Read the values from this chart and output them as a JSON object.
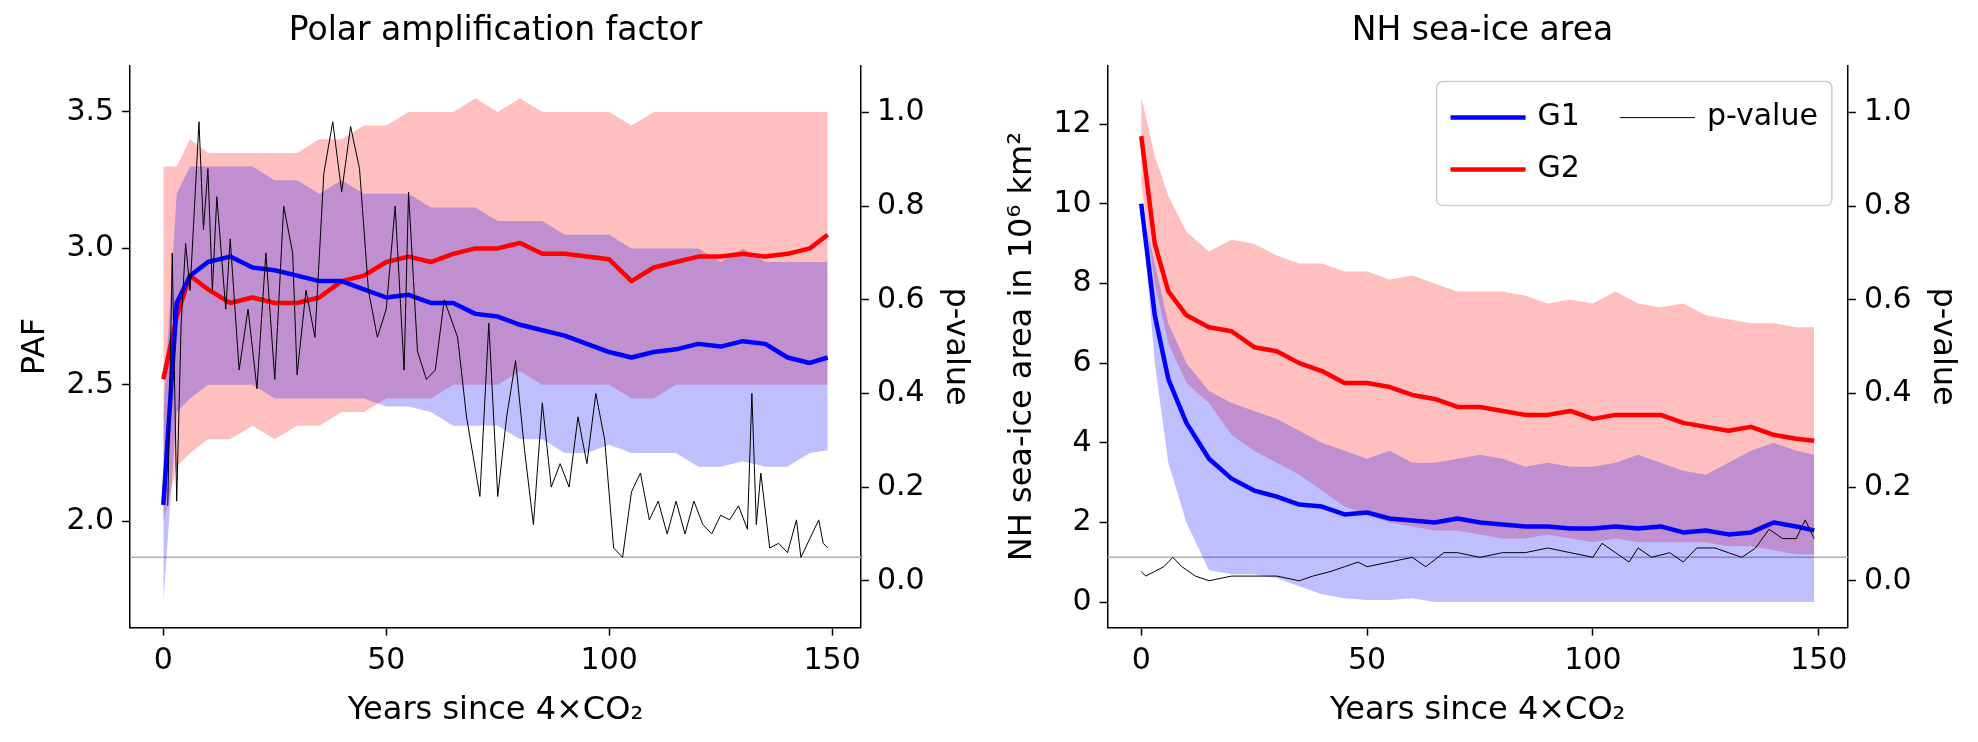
{
  "chart_data": [
    {
      "type": "line",
      "title": "Polar amplification factor",
      "xlabel": "Years since 4×CO₂",
      "ylabel": "PAF",
      "y2label": "p-value",
      "legend": false,
      "grid": false,
      "x": [
        0,
        3,
        6,
        10,
        15,
        20,
        25,
        30,
        35,
        40,
        45,
        50,
        55,
        60,
        65,
        70,
        75,
        80,
        85,
        90,
        95,
        100,
        105,
        110,
        115,
        120,
        125,
        130,
        135,
        140,
        145,
        149
      ],
      "xlim": [
        -7.45,
        156.45
      ],
      "xticks": [
        0,
        50,
        100,
        150
      ],
      "ylim": [
        1.61,
        3.67
      ],
      "yticks": [
        {
          "value": 2,
          "label": "2.0"
        },
        {
          "value": 2.5,
          "label": "2.5"
        },
        {
          "value": 3,
          "label": "3.0"
        },
        {
          "value": 3.5,
          "label": "3.5"
        }
      ],
      "y2lim": [
        -0.1,
        1.1
      ],
      "y2ticks": [
        {
          "value": 0,
          "label": "0.0"
        },
        {
          "value": 0.2,
          "label": "0.2"
        },
        {
          "value": 0.4,
          "label": "0.4"
        },
        {
          "value": 0.6,
          "label": "0.6"
        },
        {
          "value": 0.8,
          "label": "0.8"
        },
        {
          "value": 1,
          "label": "1.0"
        }
      ],
      "ref_lines": [
        {
          "axis": "y2",
          "value": 0.05,
          "color": "#b0b0b0"
        }
      ],
      "series": [
        {
          "color": "#0000ff",
          "values": [
            2.06,
            2.8,
            2.9,
            2.95,
            2.97,
            2.93,
            2.92,
            2.9,
            2.88,
            2.88,
            2.85,
            2.82,
            2.83,
            2.8,
            2.8,
            2.76,
            2.75,
            2.72,
            2.7,
            2.68,
            2.65,
            2.62,
            2.6,
            2.62,
            2.63,
            2.65,
            2.64,
            2.66,
            2.65,
            2.6,
            2.58,
            2.6
          ],
          "lower": [
            1.7,
            2.4,
            2.45,
            2.5,
            2.5,
            2.5,
            2.45,
            2.45,
            2.45,
            2.45,
            2.45,
            2.42,
            2.42,
            2.4,
            2.35,
            2.35,
            2.35,
            2.3,
            2.3,
            2.25,
            2.25,
            2.28,
            2.25,
            2.25,
            2.25,
            2.2,
            2.2,
            2.22,
            2.2,
            2.2,
            2.25,
            2.26
          ],
          "upper": [
            2.4,
            3.2,
            3.3,
            3.3,
            3.3,
            3.3,
            3.25,
            3.25,
            3.2,
            3.25,
            3.2,
            3.2,
            3.2,
            3.15,
            3.15,
            3.15,
            3.1,
            3.1,
            3.1,
            3.05,
            3.05,
            3.05,
            3.0,
            3.0,
            3.0,
            3.0,
            2.95,
            3.0,
            2.95,
            2.95,
            2.95,
            2.95
          ]
        },
        {
          "color": "#ff0000",
          "values": [
            2.52,
            2.75,
            2.9,
            2.85,
            2.8,
            2.82,
            2.8,
            2.8,
            2.82,
            2.88,
            2.9,
            2.95,
            2.97,
            2.95,
            2.98,
            3.0,
            3.0,
            3.02,
            2.98,
            2.98,
            2.97,
            2.96,
            2.88,
            2.93,
            2.95,
            2.97,
            2.97,
            2.98,
            2.97,
            2.98,
            3.0,
            3.05
          ],
          "lower": [
            2.0,
            2.2,
            2.25,
            2.3,
            2.3,
            2.35,
            2.3,
            2.35,
            2.35,
            2.4,
            2.4,
            2.45,
            2.45,
            2.45,
            2.5,
            2.5,
            2.5,
            2.55,
            2.5,
            2.5,
            2.5,
            2.5,
            2.45,
            2.45,
            2.5,
            2.5,
            2.5,
            2.5,
            2.5,
            2.5,
            2.5,
            2.5
          ],
          "upper": [
            3.3,
            3.3,
            3.4,
            3.35,
            3.35,
            3.35,
            3.35,
            3.35,
            3.4,
            3.4,
            3.45,
            3.45,
            3.5,
            3.5,
            3.5,
            3.55,
            3.5,
            3.55,
            3.5,
            3.5,
            3.5,
            3.5,
            3.45,
            3.5,
            3.5,
            3.5,
            3.5,
            3.5,
            3.5,
            3.5,
            3.5,
            3.5
          ]
        },
        {
          "color": "#000000",
          "axis": "y2",
          "x": [
            1,
            2,
            3,
            4,
            5,
            6,
            7,
            8,
            9,
            10,
            11,
            12,
            14,
            15,
            17,
            19,
            21,
            23,
            25,
            27,
            29,
            30,
            32,
            34,
            36,
            38,
            40,
            42,
            44,
            46,
            48,
            50,
            52,
            54,
            55,
            57,
            59,
            61,
            63,
            66,
            68,
            71,
            73,
            75,
            77,
            79,
            81,
            83,
            85,
            87,
            89,
            91,
            93,
            95,
            97,
            99,
            101,
            103,
            105,
            107,
            109,
            111,
            113,
            115,
            117,
            119,
            121,
            123,
            125,
            127,
            129,
            131,
            132,
            133,
            134,
            136,
            138,
            140,
            142,
            143,
            145,
            147,
            148,
            149
          ],
          "values": [
            0.16,
            0.7,
            0.17,
            0.55,
            0.72,
            0.62,
            0.8,
            0.98,
            0.75,
            0.88,
            0.62,
            0.82,
            0.58,
            0.73,
            0.45,
            0.58,
            0.41,
            0.7,
            0.43,
            0.8,
            0.7,
            0.44,
            0.62,
            0.52,
            0.87,
            0.98,
            0.83,
            0.97,
            0.88,
            0.62,
            0.52,
            0.58,
            0.8,
            0.45,
            0.83,
            0.49,
            0.43,
            0.45,
            0.6,
            0.52,
            0.35,
            0.18,
            0.55,
            0.18,
            0.35,
            0.47,
            0.28,
            0.12,
            0.38,
            0.2,
            0.25,
            0.2,
            0.35,
            0.25,
            0.4,
            0.3,
            0.07,
            0.05,
            0.19,
            0.23,
            0.13,
            0.17,
            0.1,
            0.17,
            0.1,
            0.17,
            0.12,
            0.1,
            0.14,
            0.13,
            0.16,
            0.11,
            0.4,
            0.12,
            0.23,
            0.07,
            0.08,
            0.06,
            0.13,
            0.05,
            0.09,
            0.13,
            0.08,
            0.07
          ]
        }
      ]
    },
    {
      "type": "line",
      "title": "NH sea-ice area",
      "xlabel": "Years since 4×CO₂",
      "ylabel": "NH sea-ice area in 10⁶ km²",
      "y2label": "p-value",
      "legend": "top right",
      "grid": false,
      "x": [
        0,
        3,
        6,
        10,
        15,
        20,
        25,
        30,
        35,
        40,
        45,
        50,
        55,
        60,
        65,
        70,
        75,
        80,
        85,
        90,
        95,
        100,
        105,
        110,
        115,
        120,
        125,
        130,
        135,
        140,
        145,
        149
      ],
      "xlim": [
        -7.45,
        156.45
      ],
      "xticks": [
        0,
        50,
        100,
        150
      ],
      "ylim": [
        -0.64,
        13.47
      ],
      "yticks": [
        0,
        2,
        4,
        6,
        8,
        10,
        12
      ],
      "y2lim": [
        -0.1,
        1.1
      ],
      "y2ticks": [
        {
          "value": 0,
          "label": "0.0"
        },
        {
          "value": 0.2,
          "label": "0.2"
        },
        {
          "value": 0.4,
          "label": "0.4"
        },
        {
          "value": 0.6,
          "label": "0.6"
        },
        {
          "value": 0.8,
          "label": "0.8"
        },
        {
          "value": 1,
          "label": "1.0"
        }
      ],
      "ref_lines": [
        {
          "axis": "y2",
          "value": 0.05,
          "color": "#b0b0b0"
        }
      ],
      "series": [
        {
          "name": "G1",
          "color": "#0000ff",
          "values": [
            10.0,
            7.2,
            5.6,
            4.5,
            3.6,
            3.1,
            2.8,
            2.65,
            2.45,
            2.4,
            2.2,
            2.25,
            2.1,
            2.05,
            2.0,
            2.1,
            2.0,
            1.95,
            1.9,
            1.9,
            1.85,
            1.85,
            1.9,
            1.85,
            1.9,
            1.75,
            1.8,
            1.7,
            1.75,
            2.0,
            1.9,
            1.8
          ],
          "lower": [
            10.0,
            6.0,
            3.5,
            2.0,
            0.8,
            0.7,
            0.7,
            0.6,
            0.4,
            0.2,
            0.1,
            0.05,
            0.05,
            0.1,
            0,
            0,
            0,
            0,
            0,
            0,
            0,
            0,
            0,
            0,
            0,
            0,
            0,
            0,
            0,
            0,
            0,
            0
          ],
          "upper": [
            10.0,
            8.5,
            7.0,
            6.0,
            5.3,
            5.0,
            4.8,
            4.6,
            4.3,
            4.0,
            3.8,
            3.6,
            3.8,
            3.5,
            3.5,
            3.6,
            3.7,
            3.6,
            3.4,
            3.5,
            3.4,
            3.4,
            3.5,
            3.7,
            3.5,
            3.3,
            3.2,
            3.5,
            3.8,
            4.0,
            3.8,
            3.7
          ]
        },
        {
          "name": "G2",
          "color": "#ff0000",
          "values": [
            11.7,
            9.0,
            7.8,
            7.2,
            6.9,
            6.8,
            6.4,
            6.3,
            6.0,
            5.8,
            5.5,
            5.5,
            5.4,
            5.2,
            5.1,
            4.9,
            4.9,
            4.8,
            4.7,
            4.7,
            4.8,
            4.6,
            4.7,
            4.7,
            4.7,
            4.5,
            4.4,
            4.3,
            4.4,
            4.2,
            4.1,
            4.05
          ],
          "lower": [
            10.5,
            8.0,
            6.5,
            5.5,
            5.0,
            4.2,
            3.8,
            3.5,
            3.2,
            2.8,
            2.4,
            2.2,
            2.0,
            1.9,
            1.8,
            1.8,
            1.7,
            1.6,
            1.6,
            1.7,
            1.6,
            1.5,
            1.6,
            1.5,
            1.5,
            1.5,
            1.5,
            1.4,
            1.4,
            1.3,
            1.2,
            1.2
          ],
          "upper": [
            12.7,
            11.2,
            10.2,
            9.3,
            8.8,
            9.1,
            9.0,
            8.7,
            8.5,
            8.5,
            8.3,
            8.3,
            8.1,
            8.2,
            8.0,
            7.8,
            7.8,
            7.8,
            7.7,
            7.5,
            7.6,
            7.5,
            7.8,
            7.5,
            7.4,
            7.5,
            7.2,
            7.1,
            7.0,
            7.0,
            6.9,
            6.9
          ]
        },
        {
          "name": "p-value",
          "color": "#000000",
          "axis": "y2",
          "x": [
            0,
            1,
            3,
            5,
            7,
            9,
            12,
            15,
            20,
            25,
            30,
            35,
            38,
            42,
            45,
            48,
            50,
            55,
            60,
            63,
            67,
            70,
            75,
            80,
            85,
            90,
            95,
            100,
            102,
            105,
            108,
            110,
            113,
            117,
            120,
            123,
            127,
            130,
            133,
            136,
            139,
            142,
            145,
            147,
            149
          ],
          "values": [
            0.02,
            0.01,
            0.02,
            0.03,
            0.05,
            0.03,
            0.01,
            0.0,
            0.01,
            0.01,
            0.01,
            0.0,
            0.01,
            0.02,
            0.03,
            0.04,
            0.03,
            0.04,
            0.05,
            0.03,
            0.06,
            0.06,
            0.05,
            0.06,
            0.06,
            0.07,
            0.06,
            0.05,
            0.08,
            0.06,
            0.04,
            0.07,
            0.05,
            0.06,
            0.04,
            0.07,
            0.07,
            0.06,
            0.05,
            0.07,
            0.11,
            0.09,
            0.09,
            0.13,
            0.09
          ]
        }
      ]
    }
  ]
}
